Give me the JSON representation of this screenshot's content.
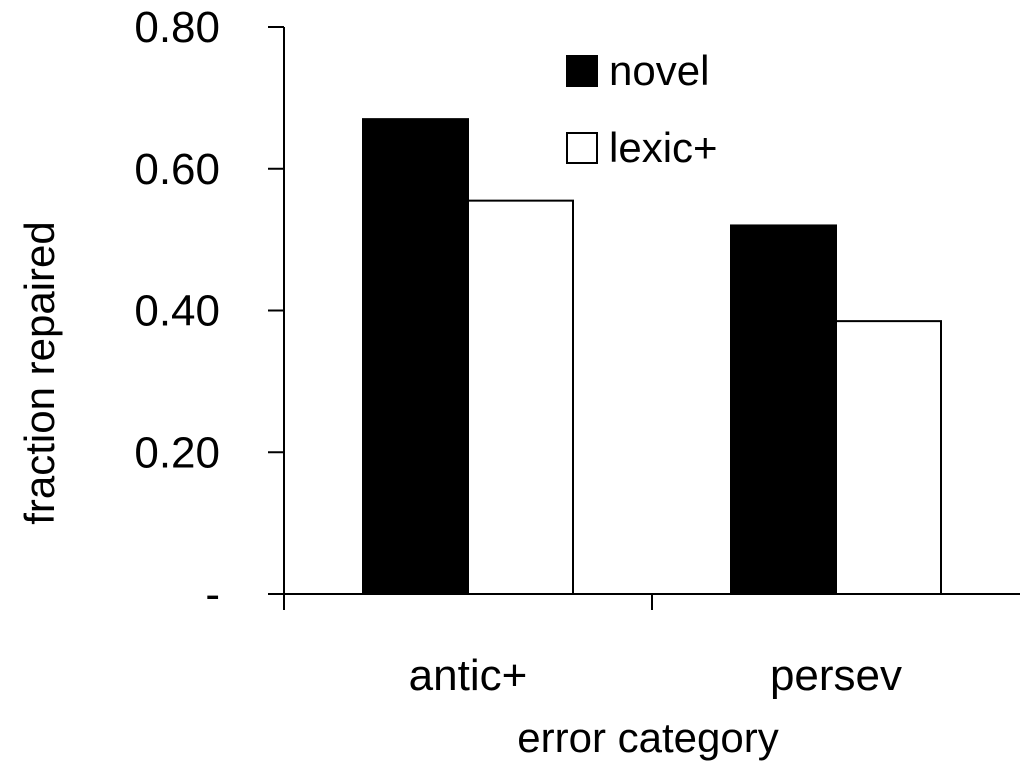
{
  "chart_data": {
    "type": "bar",
    "categories": [
      "antic+",
      "persev"
    ],
    "series": [
      {
        "name": "novel",
        "values": [
          0.67,
          0.52
        ],
        "color": "#000000"
      },
      {
        "name": "lexic+",
        "values": [
          0.555,
          0.385
        ],
        "color": "#ffffff"
      }
    ],
    "xlabel": "error category",
    "ylabel": "fraction repaired",
    "ylim": [
      0,
      0.8
    ],
    "yticks": [
      {
        "value": 0,
        "label": "-"
      },
      {
        "value": 0.2,
        "label": "0.20"
      },
      {
        "value": 0.4,
        "label": "0.40"
      },
      {
        "value": 0.6,
        "label": "0.60"
      },
      {
        "value": 0.8,
        "label": "0.80"
      }
    ],
    "grid": false,
    "legend": "top-right"
  }
}
